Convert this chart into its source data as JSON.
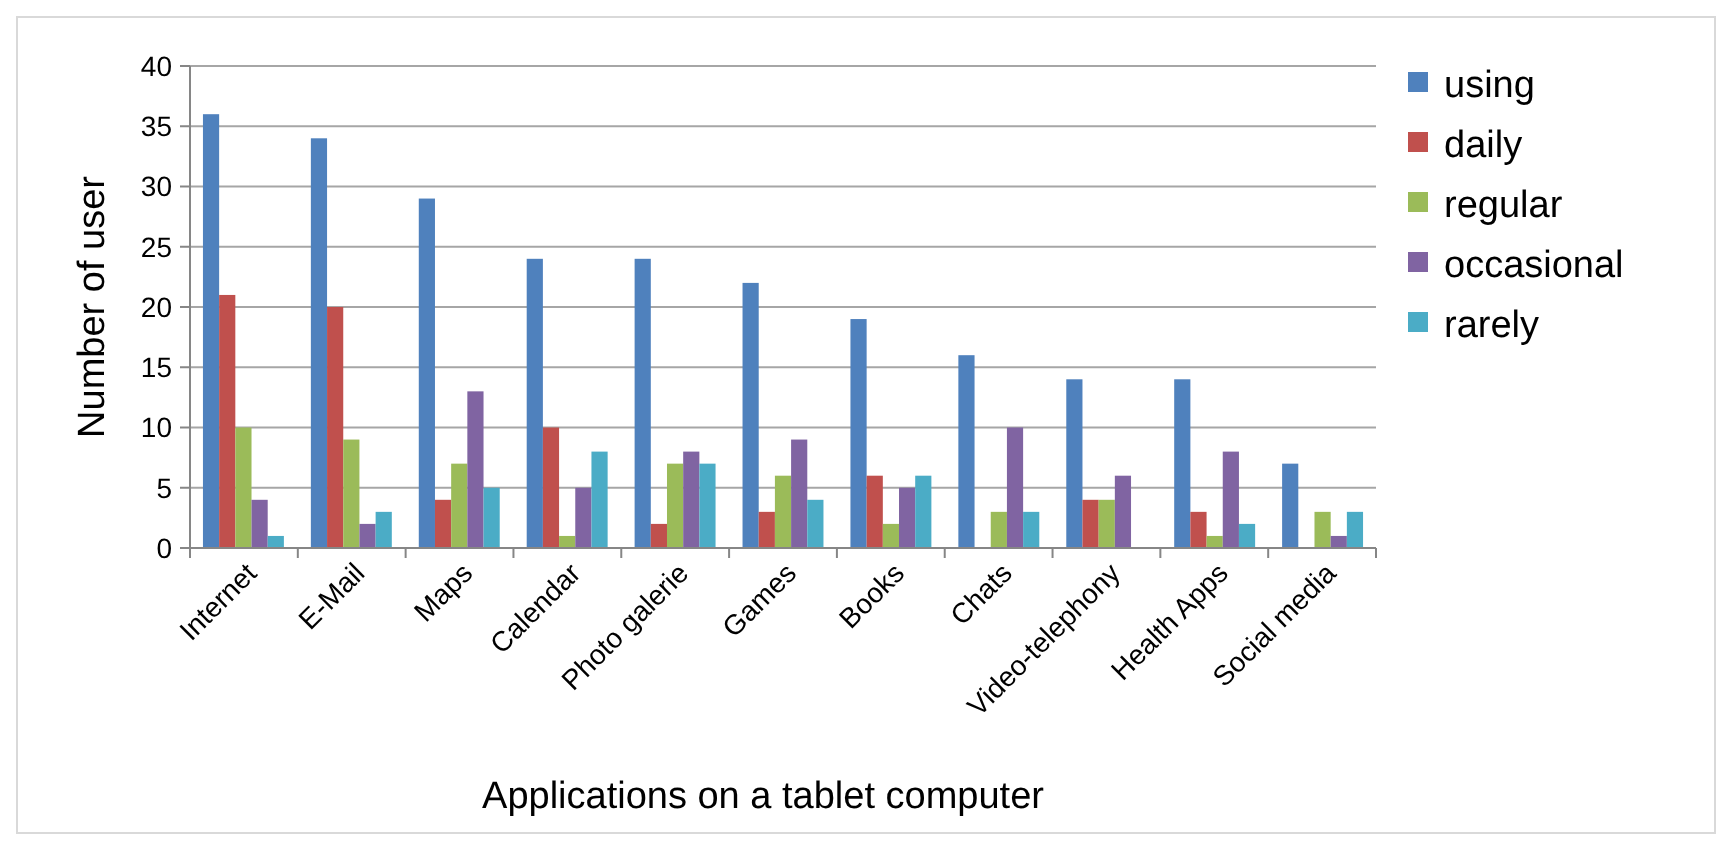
{
  "chart_data": {
    "type": "bar",
    "xlabel": "Applications on a tablet computer",
    "ylabel": "Number of user",
    "categories": [
      "Internet",
      "E-Mail",
      "Maps",
      "Calendar",
      "Photo galerie",
      "Games",
      "Books",
      "Chats",
      "Video-telephony",
      "Health Apps",
      "Social media"
    ],
    "series": [
      {
        "name": "using",
        "color": "#4f81bd",
        "values": [
          36,
          34,
          29,
          24,
          24,
          22,
          19,
          16,
          14,
          14,
          7
        ]
      },
      {
        "name": "daily",
        "color": "#c0504d",
        "values": [
          21,
          20,
          4,
          10,
          2,
          3,
          6,
          0,
          4,
          3,
          0
        ]
      },
      {
        "name": "regular",
        "color": "#9bbb59",
        "values": [
          10,
          9,
          7,
          1,
          7,
          6,
          2,
          3,
          4,
          1,
          3
        ]
      },
      {
        "name": "occasional",
        "color": "#8064a2",
        "values": [
          4,
          2,
          13,
          5,
          8,
          9,
          5,
          10,
          6,
          8,
          1
        ]
      },
      {
        "name": "rarely",
        "color": "#4bacc6",
        "values": [
          1,
          3,
          5,
          8,
          7,
          4,
          6,
          3,
          0,
          2,
          3
        ]
      }
    ],
    "ylim": [
      0,
      40
    ],
    "yticks": [
      0,
      5,
      10,
      15,
      20,
      25,
      30,
      35,
      40
    ],
    "grid": "y",
    "legend": "right"
  }
}
